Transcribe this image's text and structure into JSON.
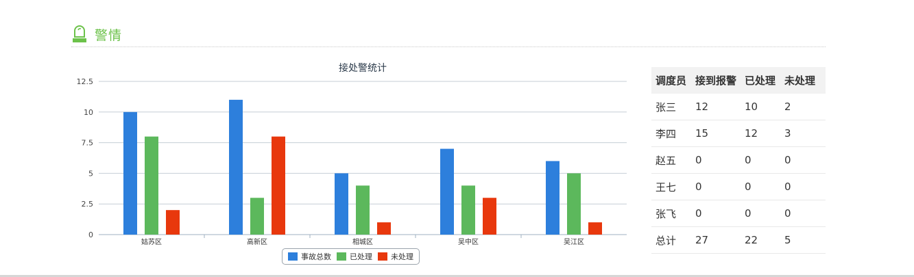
{
  "header": {
    "title": "警情",
    "icon": "user-monitor-icon",
    "color": "#6cc24a"
  },
  "chart_data": {
    "type": "bar",
    "title": "接处警统计",
    "categories": [
      "姑苏区",
      "高新区",
      "相城区",
      "吴中区",
      "吴江区"
    ],
    "series": [
      {
        "name": "事故总数",
        "color": "#2d7fdc",
        "values": [
          10,
          11,
          5,
          7,
          6
        ]
      },
      {
        "name": "已处理",
        "color": "#5cb85c",
        "values": [
          8,
          3,
          4,
          4,
          5
        ]
      },
      {
        "name": "未处理",
        "color": "#e8380d",
        "values": [
          2,
          8,
          1,
          3,
          1
        ]
      }
    ],
    "yticks": [
      "0",
      "2.5",
      "5",
      "7.5",
      "10",
      "12.5"
    ],
    "ylim": [
      0,
      12.5
    ],
    "xlabel": "",
    "ylabel": "",
    "grid": true,
    "legend": "bottom-center"
  },
  "table": {
    "headers": [
      "调度员",
      "接到报警",
      "已处理",
      "未处理"
    ],
    "rows": [
      [
        "张三",
        "12",
        "10",
        "2"
      ],
      [
        "李四",
        "15",
        "12",
        "3"
      ],
      [
        "赵五",
        "0",
        "0",
        "0"
      ],
      [
        "王七",
        "0",
        "0",
        "0"
      ],
      [
        "张飞",
        "0",
        "0",
        "0"
      ],
      [
        "总计",
        "27",
        "22",
        "5"
      ]
    ]
  }
}
